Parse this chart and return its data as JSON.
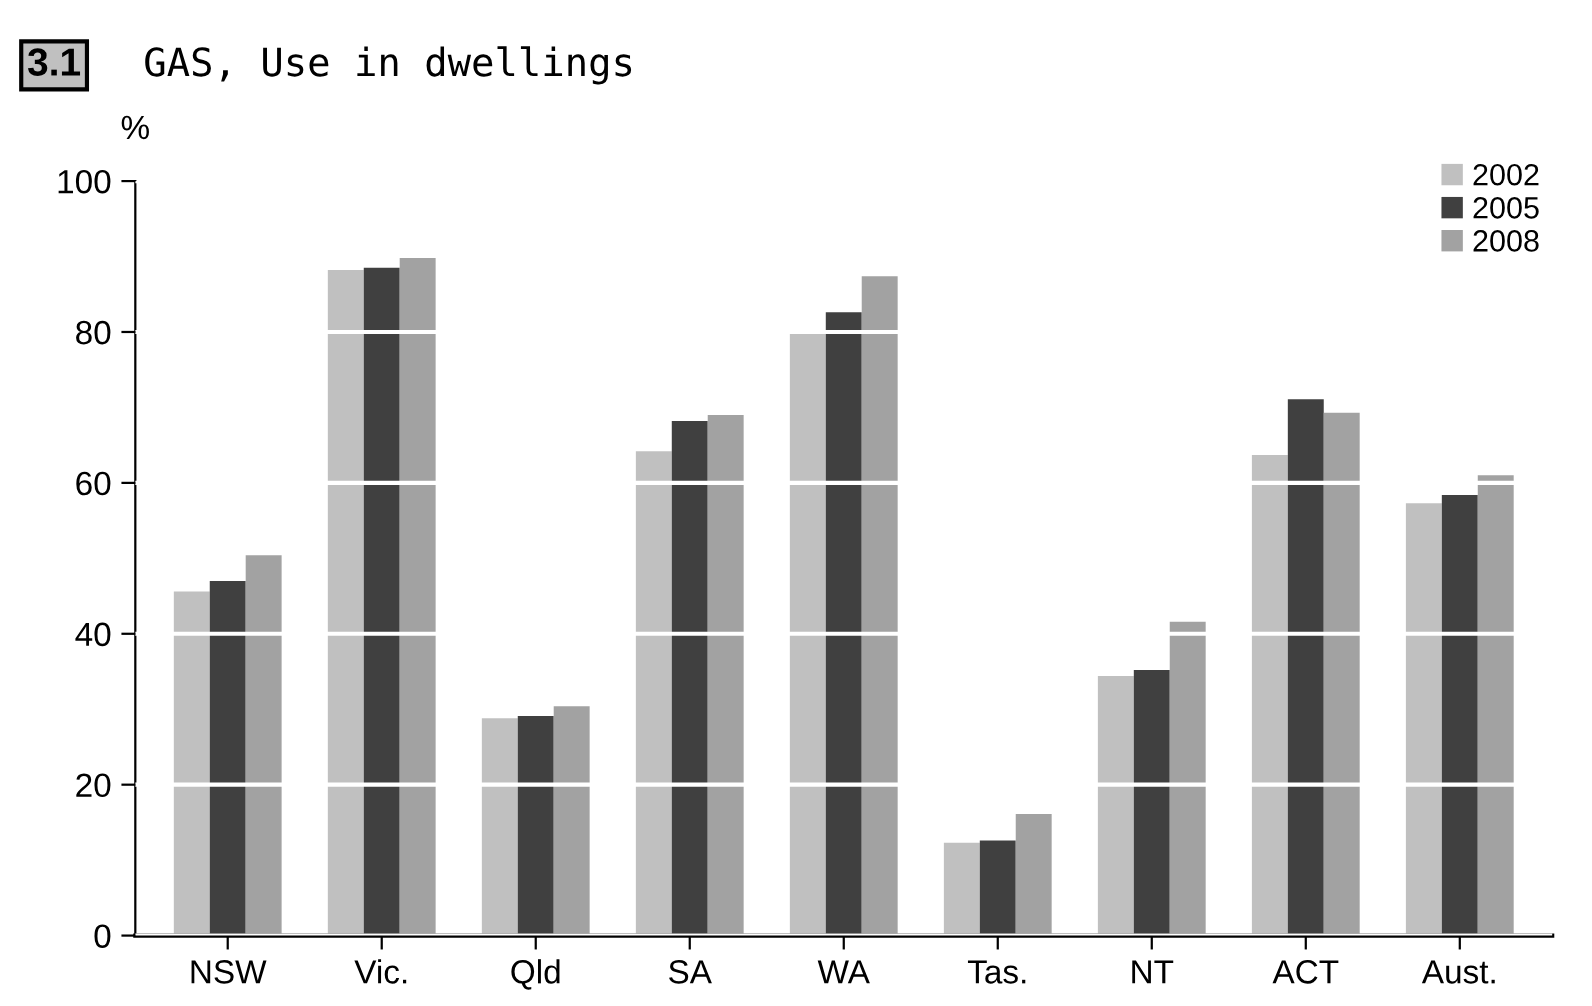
{
  "chart_data": {
    "type": "bar",
    "title": "GAS, Use in dwellings",
    "ylabel": "%",
    "annotations": [
      "3.1"
    ],
    "categories": [
      "NSW",
      "Vic.",
      "Qld",
      "SA",
      "WA",
      "Tas.",
      "NT",
      "ACT",
      "Aust."
    ],
    "series": [
      {
        "name": "2002",
        "color": "#c0c0c0",
        "values": [
          45.6,
          88.2,
          28.8,
          64.2,
          79.8,
          12.3,
          34.4,
          63.7,
          57.3
        ]
      },
      {
        "name": "2005",
        "color": "#404040",
        "values": [
          47.0,
          88.5,
          29.1,
          68.2,
          82.6,
          12.6,
          35.2,
          71.1,
          58.4
        ]
      },
      {
        "name": "2008",
        "color": "#a2a2a2",
        "values": [
          50.4,
          89.8,
          30.4,
          69.0,
          87.4,
          16.1,
          41.6,
          69.3,
          61.0
        ]
      }
    ],
    "ylim": [
      0,
      100
    ],
    "yticks": [
      0,
      20,
      40,
      60,
      80,
      100
    ],
    "grid": "y",
    "legend": "top right"
  }
}
